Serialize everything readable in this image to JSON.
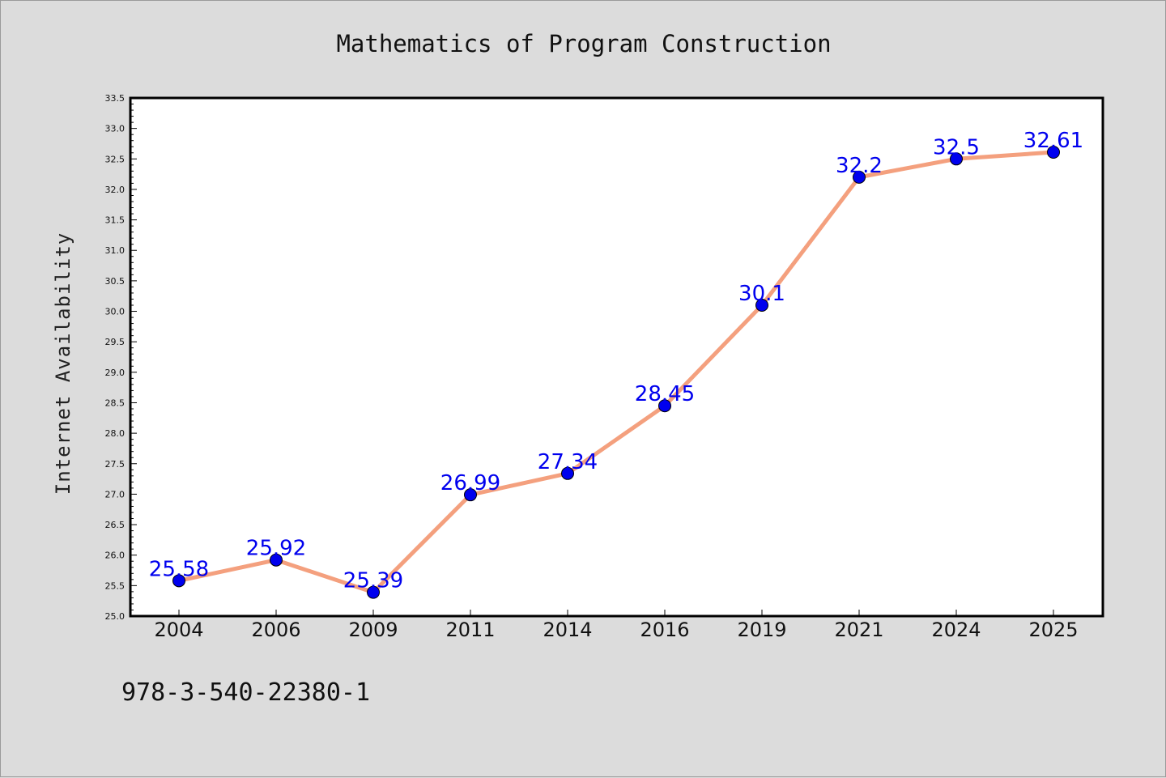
{
  "chart_data": {
    "type": "line",
    "title": "Mathematics of Program Construction",
    "xlabel": "",
    "ylabel": "Internet Availability",
    "categories": [
      "2004",
      "2006",
      "2009",
      "2011",
      "2014",
      "2016",
      "2019",
      "2021",
      "2024",
      "2025"
    ],
    "series": [
      {
        "values": [
          25.58,
          25.92,
          25.39,
          26.99,
          27.34,
          28.45,
          30.1,
          32.2,
          32.5,
          32.61
        ],
        "labels": [
          "25.58",
          "25.92",
          "25.39",
          "26.99",
          "27.34",
          "28.45",
          "30.1",
          "32.2",
          "32.5",
          "32.61"
        ]
      }
    ],
    "ylim": [
      25.0,
      33.5
    ],
    "yticks": [
      "25.0",
      "25.5",
      "26.0",
      "26.5",
      "27.0",
      "27.5",
      "28.0",
      "28.5",
      "29.0",
      "29.5",
      "30.0",
      "30.5",
      "31.0",
      "31.5",
      "32.0",
      "32.5",
      "33.0",
      "33.5"
    ],
    "grid": false,
    "line_color": "#f4a07e",
    "marker_color": "#0000ee",
    "label_color": "#0000ee"
  },
  "footer": {
    "isbn": "978-3-540-22380-1"
  }
}
